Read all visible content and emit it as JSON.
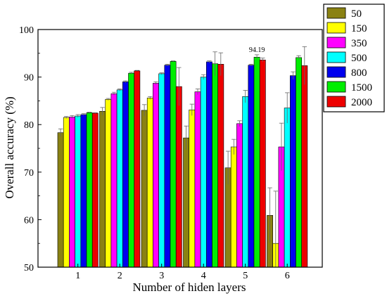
{
  "chart_data": {
    "type": "bar",
    "xlabel": "Number of hiden layers",
    "ylabel": "Overall accuracy (%)",
    "ylim": [
      50,
      100
    ],
    "yticks": [
      50,
      60,
      70,
      80,
      90,
      100
    ],
    "categories": [
      "1",
      "2",
      "3",
      "4",
      "5",
      "6"
    ],
    "grid": false,
    "legend_position": "top-right",
    "annotations": [
      {
        "text": "94.19",
        "category": "5",
        "series": "1500"
      }
    ],
    "series": [
      {
        "name": "50",
        "color": "#8a8213",
        "values": [
          78.3,
          82.8,
          83.0,
          77.2,
          70.9,
          60.9
        ],
        "errors": [
          0.8,
          0.8,
          1.2,
          2.5,
          3.5,
          5.8
        ]
      },
      {
        "name": "150",
        "color": "#ffff00",
        "values": [
          81.5,
          85.3,
          85.6,
          83.1,
          75.3,
          55.0
        ],
        "errors": [
          0.2,
          0.2,
          0.3,
          1.2,
          1.6,
          11.0
        ]
      },
      {
        "name": "350",
        "color": "#ff00ff",
        "values": [
          81.6,
          86.5,
          88.7,
          86.9,
          80.2,
          75.3
        ],
        "errors": [
          0.3,
          0.3,
          0.3,
          0.6,
          0.6,
          5.0
        ]
      },
      {
        "name": "500",
        "color": "#00ffff",
        "values": [
          81.8,
          87.3,
          90.7,
          90.0,
          85.9,
          83.5
        ],
        "errors": [
          0.3,
          0.2,
          0.2,
          0.5,
          1.3,
          3.2
        ]
      },
      {
        "name": "800",
        "color": "#0000ee",
        "values": [
          82.1,
          89.0,
          92.5,
          93.2,
          92.5,
          90.3
        ],
        "errors": [
          0.2,
          0.2,
          0.2,
          0.2,
          0.2,
          0.8
        ]
      },
      {
        "name": "1500",
        "color": "#00ee00",
        "values": [
          82.5,
          90.8,
          93.3,
          92.8,
          94.19,
          94.1
        ],
        "errors": [
          0.1,
          0.2,
          0.1,
          2.5,
          0.5,
          0.4
        ]
      },
      {
        "name": "2000",
        "color": "#ee0000",
        "values": [
          82.4,
          91.3,
          88.0,
          92.7,
          93.6,
          92.4
        ],
        "errors": [
          0.1,
          0.1,
          4.0,
          2.4,
          0.4,
          4.0
        ]
      }
    ]
  }
}
